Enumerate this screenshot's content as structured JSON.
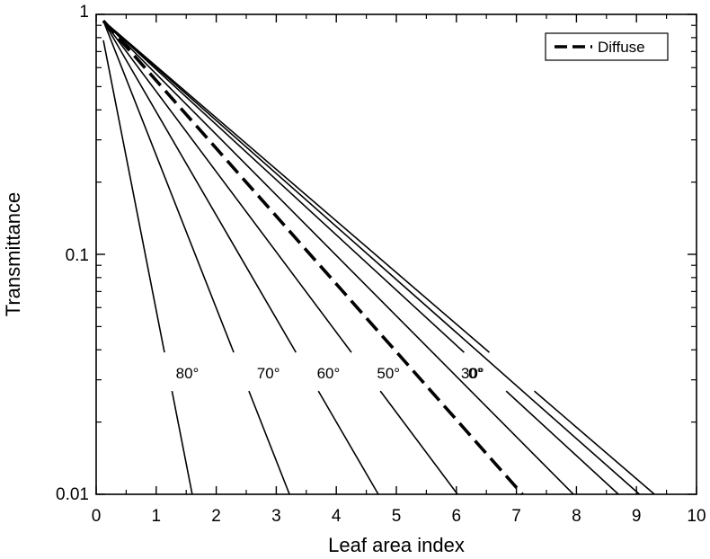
{
  "chart_data": {
    "type": "line",
    "xlabel": "Leaf area index",
    "ylabel": "Transmittance",
    "xlim": [
      0,
      10
    ],
    "ylim": [
      0.01,
      1
    ],
    "yscale": "log",
    "x_ticks": [
      "0",
      "1",
      "2",
      "3",
      "4",
      "5",
      "6",
      "7",
      "8",
      "9",
      "10"
    ],
    "y_ticks": [
      {
        "value": 0.01,
        "label": "0.01"
      },
      {
        "value": 0.1,
        "label": "0.1"
      },
      {
        "value": 1,
        "label": "1"
      }
    ],
    "grid": false,
    "legend": {
      "position": "top-right",
      "entries": [
        {
          "label": "Diffuse",
          "style": "dashed"
        }
      ]
    },
    "series": [
      {
        "label": "0°",
        "style": "solid",
        "points": [
          [
            0.12,
            0.94
          ],
          [
            9.3,
            0.01
          ]
        ],
        "label_at": [
          5.9,
          0.032
        ]
      },
      {
        "style": "solid",
        "points": [
          [
            0.12,
            0.94
          ],
          [
            9.05,
            0.01
          ]
        ]
      },
      {
        "label": "30°",
        "style": "solid",
        "points": [
          [
            0.12,
            0.94
          ],
          [
            8.7,
            0.01
          ]
        ],
        "label_at": [
          5.85,
          0.032
        ]
      },
      {
        "style": "solid",
        "points": [
          [
            0.12,
            0.94
          ],
          [
            7.95,
            0.01
          ]
        ]
      },
      {
        "label": "50°",
        "style": "solid",
        "points": [
          [
            0.12,
            0.94
          ],
          [
            6.02,
            0.01
          ]
        ],
        "label_at": [
          4.45,
          0.032
        ]
      },
      {
        "label": "60°",
        "style": "solid",
        "points": [
          [
            0.12,
            0.94
          ],
          [
            4.7,
            0.01
          ]
        ],
        "label_at": [
          3.45,
          0.032
        ]
      },
      {
        "label": "70°",
        "style": "solid",
        "points": [
          [
            0.12,
            0.94
          ],
          [
            3.22,
            0.01
          ]
        ],
        "label_at": [
          2.45,
          0.032
        ]
      },
      {
        "label": "80°",
        "style": "solid",
        "points": [
          [
            0.12,
            0.78
          ],
          [
            1.6,
            0.01
          ]
        ],
        "label_at": [
          1.1,
          0.032
        ]
      },
      {
        "name": "Diffuse",
        "style": "dashed",
        "points": [
          [
            0.12,
            0.94
          ],
          [
            7.1,
            0.01
          ]
        ]
      }
    ]
  }
}
